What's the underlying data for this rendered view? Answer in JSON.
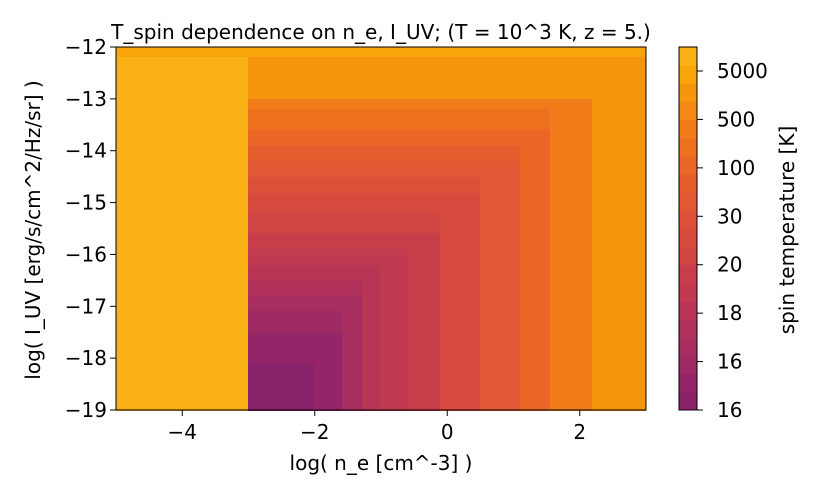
{
  "chart_data": {
    "type": "heatmap",
    "subtype": "filled-contour",
    "title": "T_spin dependence on n_e, I_UV; (T = 10^3 K, z = 5.)",
    "xlabel": "log( n_e [cm^-3] )",
    "ylabel": "log( I_UV [erg/s/cm^2/Hz/sr] )",
    "xlim": [
      -5,
      3
    ],
    "ylim": [
      -19,
      -12
    ],
    "xticks": [
      -4,
      -2,
      0,
      2
    ],
    "xtick_labels": [
      "−4",
      "−2",
      "0",
      "2"
    ],
    "yticks": [
      -19,
      -18,
      -17,
      -16,
      -15,
      -14,
      -13,
      -12
    ],
    "ytick_labels": [
      "−19",
      "−18",
      "−17",
      "−16",
      "−15",
      "−14",
      "−13",
      "−12"
    ],
    "colorbar": {
      "label": "spin temperature [K]",
      "tick_labels": [
        "16",
        "16",
        "18",
        "20",
        "30",
        "100",
        "500",
        "5000"
      ],
      "levels": [
        {
          "color": "#8a226a"
        },
        {
          "color": "#952569"
        },
        {
          "color": "#9e2a64"
        },
        {
          "color": "#a82e5f"
        },
        {
          "color": "#b0325a"
        },
        {
          "color": "#b93556"
        },
        {
          "color": "#c23a50"
        },
        {
          "color": "#c93e4b"
        },
        {
          "color": "#d04544"
        },
        {
          "color": "#d74b3f"
        },
        {
          "color": "#dd513a"
        },
        {
          "color": "#e25734"
        },
        {
          "color": "#e65e2d"
        },
        {
          "color": "#ea6726"
        },
        {
          "color": "#ee7120"
        },
        {
          "color": "#f27c1a"
        },
        {
          "color": "#f48814"
        },
        {
          "color": "#f6960d"
        },
        {
          "color": "#f8a40a"
        },
        {
          "color": "#f9b115"
        }
      ]
    },
    "contour_model": {
      "background_level": 19,
      "horizontal_bands": [
        {
          "y_min": -13.0,
          "level": 17
        },
        {
          "y_min": -13.2,
          "level": 15
        },
        {
          "y_min": -13.6,
          "level": 14
        },
        {
          "y_min": -13.9,
          "level": 13
        },
        {
          "y_min": -14.2,
          "level": 12
        },
        {
          "y_min": -14.5,
          "level": 11
        },
        {
          "y_min": -14.8,
          "level": 10
        },
        {
          "y_min": -15.2,
          "level": 9
        },
        {
          "y_min": -15.6,
          "level": 8
        },
        {
          "y_min": -15.9,
          "level": 7
        },
        {
          "y_min": -16.2,
          "level": 6
        },
        {
          "y_min": -16.5,
          "level": 5
        },
        {
          "y_min": -16.8,
          "level": 4
        },
        {
          "y_min": -17.1,
          "level": 3
        },
        {
          "y_min": -17.5,
          "level": 2
        },
        {
          "y_min": -18.1,
          "level": 1
        },
        {
          "y_min": -19.0,
          "level": 0
        }
      ],
      "vertical_bands": [
        {
          "x_max": 2.2,
          "level": 17
        },
        {
          "x_max": 1.55,
          "level": 15
        },
        {
          "x_max": 1.1,
          "level": 13
        },
        {
          "x_max": 0.5,
          "level": 11
        },
        {
          "x_max": -0.1,
          "level": 9
        },
        {
          "x_max": -0.6,
          "level": 7
        },
        {
          "x_max": -1.0,
          "level": 6
        },
        {
          "x_max": -1.3,
          "level": 5
        },
        {
          "x_max": -1.6,
          "level": 3
        },
        {
          "x_max": -2.0,
          "level": 1
        },
        {
          "x_max": -3.0,
          "level": 0
        }
      ],
      "top_band_level": 18,
      "top_band_y_min": -12.2
    }
  }
}
